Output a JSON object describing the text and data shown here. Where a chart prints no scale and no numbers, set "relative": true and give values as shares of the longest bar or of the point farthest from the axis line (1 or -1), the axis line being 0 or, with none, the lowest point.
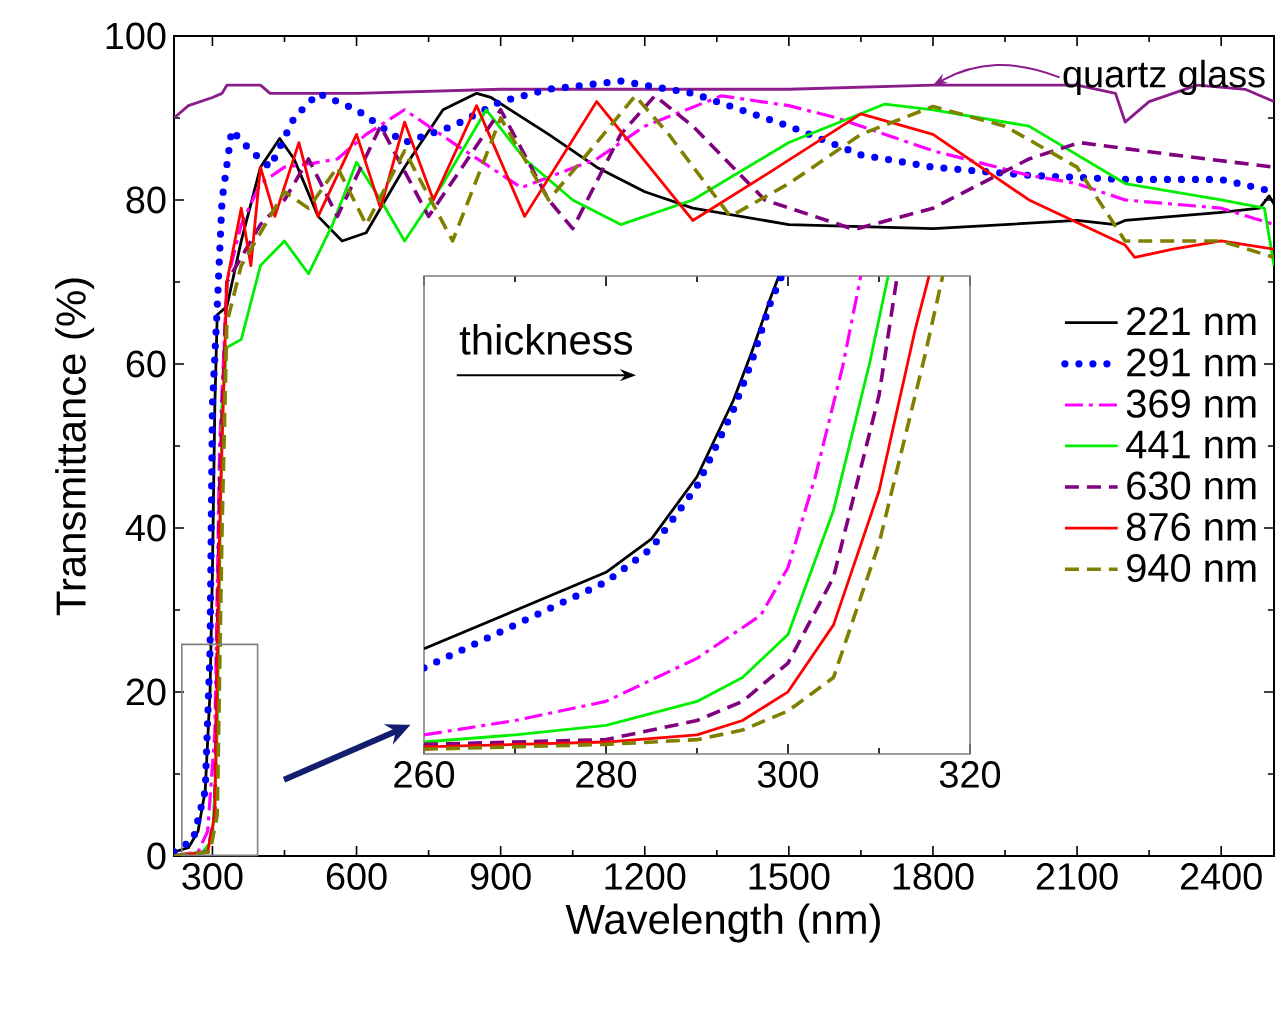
{
  "chart_data": [
    {
      "type": "line",
      "xlabel": "Wavelength (nm)",
      "ylabel": "Transmittance (%)",
      "xlim": [
        220,
        2510
      ],
      "ylim": [
        0,
        100
      ],
      "xticks": [
        300,
        600,
        900,
        1200,
        1500,
        1800,
        2100,
        2400
      ],
      "yticks": [
        0,
        20,
        40,
        60,
        80,
        100
      ],
      "legend": "right",
      "marker": "none",
      "grid": false,
      "annotations": [
        {
          "text": "quartz glass",
          "x": 1800,
          "y": 94
        }
      ],
      "series": [
        {
          "color": "#8b1c8b",
          "line_style": "solid",
          "x": [
            220,
            250,
            300,
            320,
            330,
            400,
            420,
            600,
            900,
            1200,
            1500,
            1800,
            2100,
            2180,
            2200,
            2250,
            2350,
            2450,
            2510
          ],
          "values": [
            90,
            91.5,
            92.5,
            93,
            94,
            94,
            93,
            93,
            93.5,
            93.5,
            93.5,
            94,
            94,
            93,
            89.5,
            92,
            94,
            93.5,
            92
          ]
        },
        {
          "name": "221 nm",
          "color": "#000000",
          "line_style": "solid",
          "x": [
            220,
            250,
            270,
            285,
            295,
            300,
            305,
            310,
            330,
            360,
            400,
            440,
            470,
            520,
            570,
            620,
            700,
            780,
            850,
            880,
            1000,
            1100,
            1200,
            1300,
            1500,
            1800,
            2100,
            2180,
            2200,
            2400,
            2480,
            2500,
            2510
          ],
          "values": [
            0.5,
            1,
            3,
            8,
            20,
            35,
            55,
            66,
            67,
            75,
            84,
            87.5,
            85,
            78,
            75,
            76,
            84,
            91,
            93,
            92.5,
            88,
            84,
            81,
            79,
            77,
            76.5,
            77.5,
            77,
            77.5,
            78.5,
            79,
            80.5,
            79.5
          ]
        },
        {
          "name": "291 nm",
          "color": "#0000ff",
          "line_style": "dotted",
          "x": [
            220,
            260,
            285,
            295,
            300,
            310,
            320,
            340,
            380,
            420,
            470,
            520,
            600,
            700,
            800,
            900,
            1000,
            1150,
            1300,
            1500,
            1650,
            1800,
            2000,
            2200,
            2400,
            2510
          ],
          "values": [
            0.5,
            2,
            8,
            25,
            55,
            67,
            80,
            88.5,
            86,
            84,
            90,
            93,
            91,
            87,
            89,
            92,
            93.5,
            94.5,
            93,
            89,
            85.5,
            84,
            83,
            82.5,
            82.5,
            81
          ]
        },
        {
          "name": "369 nm",
          "color": "#ff00ff",
          "line_style": "dashdot",
          "x": [
            220,
            270,
            290,
            305,
            315,
            330,
            360,
            400,
            450,
            511,
            560,
            620,
            700,
            800,
            943,
            1100,
            1200,
            1360,
            1500,
            1600,
            1800,
            2000,
            2100,
            2200,
            2400,
            2510
          ],
          "values": [
            0,
            0.5,
            3,
            15,
            50,
            70,
            77,
            82,
            84,
            84.5,
            85,
            88,
            91,
            87,
            81.5,
            85,
            89,
            92.7,
            91.5,
            90,
            86,
            83,
            82,
            80,
            79,
            77
          ]
        },
        {
          "name": "441 nm",
          "color": "#00ee00",
          "line_style": "solid",
          "x": [
            220,
            280,
            300,
            310,
            320,
            330,
            360,
            400,
            450,
            500,
            550,
            600,
            650,
            700,
            780,
            870,
            950,
            1050,
            1150,
            1300,
            1500,
            1700,
            1800,
            2000,
            2200,
            2400,
            2490,
            2510
          ],
          "values": [
            0,
            0.5,
            2,
            15,
            55,
            62,
            63,
            72,
            75,
            71,
            77,
            84.6,
            80,
            75,
            82,
            91,
            85,
            80,
            77,
            80,
            87,
            91.7,
            91,
            89,
            82,
            80,
            79,
            72
          ]
        },
        {
          "name": "630 nm",
          "color": "#800080",
          "line_style": "dashed",
          "x": [
            220,
            290,
            305,
            315,
            330,
            360,
            400,
            450,
            500,
            560,
            650,
            750,
            820,
            900,
            1000,
            1050,
            1150,
            1221,
            1300,
            1450,
            1636,
            1800,
            2000,
            2105,
            2300,
            2510
          ],
          "values": [
            0,
            0.5,
            5,
            45,
            70,
            73,
            77,
            80,
            85,
            78,
            89,
            78,
            84,
            91,
            80,
            76.5,
            88,
            92.7,
            89,
            80,
            76.4,
            79,
            85,
            87,
            85.5,
            84
          ]
        },
        {
          "name": "876 nm",
          "color": "#ff0000",
          "line_style": "solid",
          "x": [
            220,
            290,
            305,
            315,
            330,
            360,
            380,
            400,
            430,
            480,
            520,
            600,
            650,
            700,
            760,
            850,
            950,
            1100,
            1300,
            1450,
            1650,
            1800,
            2000,
            2200,
            2220,
            2300,
            2400,
            2510
          ],
          "values": [
            0,
            0.5,
            5,
            40,
            70,
            79,
            72,
            84,
            78,
            87,
            78,
            88,
            79,
            89.5,
            80,
            91.5,
            78,
            92,
            77.5,
            83,
            90.5,
            88,
            80,
            74.5,
            73,
            74,
            75,
            74
          ]
        },
        {
          "name": "940 nm",
          "color": "#808000",
          "line_style": "dashed",
          "x": [
            220,
            295,
            310,
            320,
            330,
            360,
            400,
            450,
            500,
            560,
            620,
            700,
            800,
            900,
            1000,
            1100,
            1180,
            1250,
            1378,
            1500,
            1650,
            1800,
            1950,
            2100,
            2200,
            2300,
            2400,
            2510
          ],
          "values": [
            0,
            0.5,
            5,
            40,
            65,
            72,
            76,
            81,
            79,
            84,
            77,
            86,
            75,
            90,
            80,
            87,
            92.7,
            88,
            78,
            82,
            88,
            91.4,
            89,
            84,
            75,
            75,
            75,
            73
          ]
        }
      ]
    },
    {
      "type": "line",
      "relative": true,
      "xlim": [
        260,
        320
      ],
      "xticks": [
        260,
        280,
        300,
        320
      ],
      "tick_labels": "x",
      "marker": "none",
      "grid": false,
      "annotations": [
        "thickness"
      ],
      "series": [
        {
          "color": "#000000",
          "line_style": "solid",
          "x": [
            260,
            270,
            280,
            285,
            290,
            294,
            296,
            298,
            299
          ],
          "values": [
            0.22,
            0.3,
            0.38,
            0.45,
            0.58,
            0.74,
            0.84,
            0.95,
            1
          ]
        },
        {
          "color": "#0000ff",
          "line_style": "dotted",
          "x": [
            260,
            270,
            280,
            285,
            290,
            294,
            296,
            298,
            299.3
          ],
          "values": [
            0.18,
            0.27,
            0.36,
            0.43,
            0.56,
            0.72,
            0.82,
            0.94,
            1
          ]
        },
        {
          "color": "#ff00ff",
          "line_style": "dashdot",
          "x": [
            260,
            270,
            280,
            290,
            297,
            300,
            303,
            306,
            308
          ],
          "values": [
            0.04,
            0.07,
            0.11,
            0.2,
            0.29,
            0.39,
            0.58,
            0.81,
            1
          ]
        },
        {
          "color": "#00ee00",
          "line_style": "solid",
          "x": [
            260,
            270,
            280,
            290,
            295,
            300,
            305,
            309,
            311
          ],
          "values": [
            0.025,
            0.04,
            0.06,
            0.11,
            0.16,
            0.25,
            0.51,
            0.82,
            1
          ]
        },
        {
          "color": "#800080",
          "line_style": "dashed",
          "x": [
            260,
            280,
            290,
            295,
            300,
            305,
            310,
            312
          ],
          "values": [
            0.02,
            0.03,
            0.07,
            0.11,
            0.19,
            0.37,
            0.75,
            1
          ]
        },
        {
          "color": "#ff0000",
          "line_style": "solid",
          "x": [
            260,
            280,
            290,
            295,
            300,
            305,
            310,
            314,
            315.5
          ],
          "values": [
            0.015,
            0.025,
            0.04,
            0.07,
            0.13,
            0.27,
            0.55,
            0.89,
            1
          ]
        },
        {
          "color": "#808000",
          "line_style": "dashed",
          "x": [
            260,
            280,
            290,
            295,
            300,
            305,
            310,
            315,
            317
          ],
          "values": [
            0.01,
            0.02,
            0.03,
            0.05,
            0.09,
            0.16,
            0.44,
            0.83,
            1
          ]
        }
      ]
    }
  ]
}
